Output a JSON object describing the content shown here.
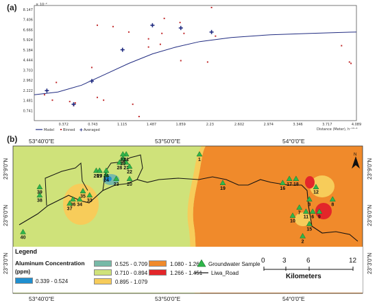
{
  "panel_a": {
    "letter": "(a)",
    "exponent": "× 10⁻²",
    "y_ticks": [
      "8.147",
      "7.406",
      "6.666",
      "5.924",
      "5.184",
      "4.444",
      "3.703",
      "2.962",
      "2.222",
      "1.481",
      "0.741"
    ],
    "x_ticks": [
      "0.372",
      "0.743",
      "1.115",
      "1.487",
      "1.859",
      "2.23",
      "2.602",
      "2.974",
      "3.346",
      "3.717",
      "4.089"
    ],
    "legend": {
      "model": "Model",
      "binned": "Binned",
      "averaged": "Averaged"
    },
    "x_axis_label": "Distance (Meter), h⁻¹⁰⁻⁴"
  },
  "chart_data": {
    "type": "scatter",
    "x_ticks": [
      0.372,
      0.743,
      1.115,
      1.487,
      1.859,
      2.23,
      2.602,
      2.974,
      3.346,
      3.717,
      4.089
    ],
    "y_ticks": [
      0.741,
      1.481,
      2.222,
      2.962,
      3.703,
      4.444,
      5.184,
      5.924,
      6.666,
      7.406,
      8.147
    ],
    "xlim": [
      0,
      4.089
    ],
    "ylim": [
      0,
      8.147
    ],
    "series": [
      {
        "name": "Binned",
        "points": [
          [
            0.13,
            1.9
          ],
          [
            0.23,
            1.5
          ],
          [
            0.28,
            2.8
          ],
          [
            0.45,
            1.4
          ],
          [
            0.5,
            1.1
          ],
          [
            0.52,
            1.3
          ],
          [
            0.73,
            3.9
          ],
          [
            0.8,
            1.7
          ],
          [
            0.8,
            7.0
          ],
          [
            0.88,
            1.5
          ],
          [
            1.0,
            6.9
          ],
          [
            1.2,
            6.5
          ],
          [
            1.25,
            1.2
          ],
          [
            1.33,
            0.3
          ],
          [
            1.45,
            5.4
          ],
          [
            1.45,
            6.0
          ],
          [
            1.6,
            5.6
          ],
          [
            1.62,
            6.4
          ],
          [
            1.65,
            7.5
          ],
          [
            1.85,
            7.2
          ],
          [
            1.86,
            4.4
          ],
          [
            1.9,
            6.4
          ],
          [
            2.2,
            4.3
          ],
          [
            2.25,
            8.3
          ],
          [
            2.3,
            6.2
          ],
          [
            3.9,
            5.5
          ],
          [
            4.0,
            4.3
          ],
          [
            4.02,
            4.2
          ]
        ]
      },
      {
        "name": "Averaged",
        "points": [
          [
            0.16,
            2.2
          ],
          [
            0.5,
            1.2
          ],
          [
            0.73,
            2.9
          ],
          [
            1.12,
            5.2
          ],
          [
            1.5,
            7.0
          ],
          [
            1.86,
            6.8
          ],
          [
            2.25,
            6.5
          ]
        ]
      },
      {
        "name": "Model",
        "points": [
          [
            0,
            1.9
          ],
          [
            0.3,
            2.1
          ],
          [
            0.6,
            2.6
          ],
          [
            0.9,
            3.4
          ],
          [
            1.2,
            4.2
          ],
          [
            1.5,
            4.9
          ],
          [
            1.8,
            5.4
          ],
          [
            2.1,
            5.8
          ],
          [
            2.5,
            6.1
          ],
          [
            3.0,
            6.3
          ],
          [
            3.5,
            6.4
          ],
          [
            4.089,
            6.5
          ]
        ]
      }
    ]
  },
  "panel_b": {
    "letter": "(b)",
    "top_coords": [
      "53°40'0\"E",
      "53°50'0\"E",
      "54°0'0\"E"
    ],
    "bottom_coords": [
      "53°40'0\"E",
      "53°50'0\"E",
      "54°0'0\"E"
    ],
    "left_coords": [
      "23°9'0\"N",
      "23°6'0\"N",
      "23°3'0\"N"
    ],
    "right_coords": [
      "23°9'0\"N",
      "23°6'0\"N",
      "23°3'0\"N"
    ],
    "north": "N",
    "samples": [
      {
        "id": "1",
        "x": 5.6,
        "y": 3.4
      },
      {
        "id": "2",
        "x": 8.7,
        "y": 1.4
      },
      {
        "id": "3",
        "x": 8.9,
        "y": 2.3
      },
      {
        "id": "4",
        "x": 10.0,
        "y": 0.7
      },
      {
        "id": "5",
        "x": 8.5,
        "y": 1.0
      },
      {
        "id": "6",
        "x": 9.0,
        "y": 2.0
      },
      {
        "id": "7",
        "x": 8.6,
        "y": 2.1
      },
      {
        "id": "8",
        "x": 9.6,
        "y": 2.3
      },
      {
        "id": "9",
        "x": 9.2,
        "y": 2.0
      },
      {
        "id": "10",
        "x": 8.4,
        "y": 1.9
      },
      {
        "id": "11",
        "x": 8.8,
        "y": 2.0
      },
      {
        "id": "12",
        "x": 9.1,
        "y": 2.6
      },
      {
        "id": "13",
        "x": 10.2,
        "y": 0.3
      },
      {
        "id": "14",
        "x": 10.0,
        "y": 0.5
      },
      {
        "id": "15",
        "x": 8.9,
        "y": 1.7
      },
      {
        "id": "16",
        "x": 8.1,
        "y": 2.7
      },
      {
        "id": "17",
        "x": 8.3,
        "y": 2.8
      },
      {
        "id": "18",
        "x": 8.5,
        "y": 2.8
      },
      {
        "id": "19",
        "x": 6.3,
        "y": 2.7
      },
      {
        "id": "20",
        "x": 3.5,
        "y": 2.8
      },
      {
        "id": "21",
        "x": 3.4,
        "y": 3.2
      },
      {
        "id": "22",
        "x": 3.5,
        "y": 3.1
      },
      {
        "id": "23",
        "x": 3.1,
        "y": 2.8
      },
      {
        "id": "24",
        "x": 2.8,
        "y": 2.9
      },
      {
        "id": "25",
        "x": 2.5,
        "y": 3.0
      },
      {
        "id": "26",
        "x": 2.8,
        "y": 3.0
      },
      {
        "id": "27",
        "x": 2.6,
        "y": 3.0
      },
      {
        "id": "28",
        "x": 3.2,
        "y": 3.2
      },
      {
        "id": "29",
        "x": 2.6,
        "y": 3.0
      },
      {
        "id": "30",
        "x": 3.3,
        "y": 3.3
      },
      {
        "id": "31",
        "x": 3.4,
        "y": 3.4
      },
      {
        "id": "32",
        "x": 3.3,
        "y": 3.4
      },
      {
        "id": "33",
        "x": 2.3,
        "y": 2.4
      },
      {
        "id": "34",
        "x": 2.0,
        "y": 2.3
      },
      {
        "id": "35",
        "x": 2.1,
        "y": 2.5
      },
      {
        "id": "36",
        "x": 1.8,
        "y": 2.3
      },
      {
        "id": "37",
        "x": 1.7,
        "y": 2.2
      },
      {
        "id": "38",
        "x": 0.8,
        "y": 2.4
      },
      {
        "id": "39",
        "x": 0.8,
        "y": 2.6
      },
      {
        "id": "40",
        "x": 0.3,
        "y": 1.5
      }
    ]
  },
  "legend": {
    "title": "Legend",
    "subtitle": "Aluminum Concentration",
    "unit": "(ppm)",
    "classes": [
      {
        "label": "0.339 - 0.524",
        "color": "#1f8fd0"
      },
      {
        "label": "0.525 - 0.709",
        "color": "#77b9a7"
      },
      {
        "label": "0.710 - 0.894",
        "color": "#cfe27a"
      },
      {
        "label": "0.895 - 1.079",
        "color": "#f7cc5a"
      },
      {
        "label": "1.080 - 1.265",
        "color": "#f08a2b"
      },
      {
        "label": "1.266 - 1.451",
        "color": "#e3262a"
      }
    ],
    "groundwater": "Groundwater Sample",
    "road": "Liwa_Road",
    "scale_ticks": [
      "0",
      "3",
      "6",
      "12"
    ],
    "scale_unit": "Kilometers"
  }
}
